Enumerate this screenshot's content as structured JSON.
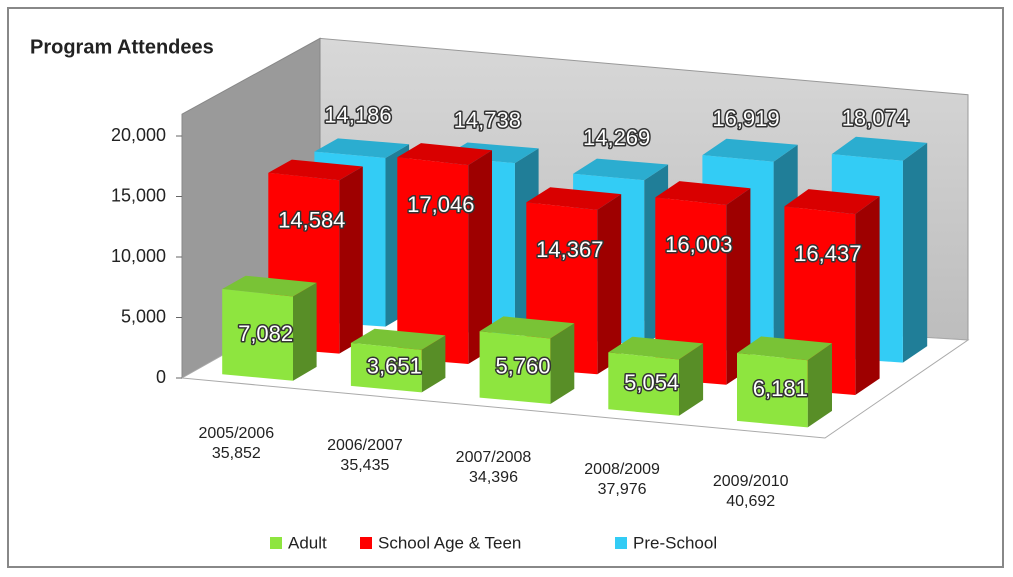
{
  "chart_data": {
    "type": "bar3d",
    "title": "Program Attendees",
    "categories": [
      "2005/2006",
      "2006/2007",
      "2007/2008",
      "2008/2009",
      "2009/2010"
    ],
    "category_totals": [
      "35,852",
      "35,435",
      "34,396",
      "37,976",
      "40,692"
    ],
    "series": [
      {
        "name": "Adult",
        "color": "#8ee53f",
        "values": [
          7082,
          3651,
          5760,
          5054,
          6181
        ],
        "value_labels": [
          "7,082",
          "3,651",
          "5,760",
          "5,054",
          "6,181"
        ]
      },
      {
        "name": "School Age & Teen",
        "color": "#ff0000",
        "values": [
          14584,
          17046,
          14367,
          16003,
          16437
        ],
        "value_labels": [
          "14,584",
          "17,046",
          "14,367",
          "16,003",
          "16,437"
        ]
      },
      {
        "name": "Pre-School",
        "color": "#33ccf5",
        "values": [
          14186,
          14738,
          14269,
          16919,
          18074
        ],
        "value_labels": [
          "14,186",
          "14,738",
          "14,269",
          "16,919",
          "18,074"
        ]
      }
    ],
    "ylim": [
      0,
      20000
    ],
    "yticks": [
      0,
      {
        "value": 5000,
        "label": "5,000"
      },
      {
        "value": 10000,
        "label": "10,000"
      },
      {
        "value": 15000,
        "label": "15,000"
      },
      {
        "value": 20000,
        "label": "20,000"
      }
    ],
    "grid": false,
    "legend": "bottom"
  }
}
